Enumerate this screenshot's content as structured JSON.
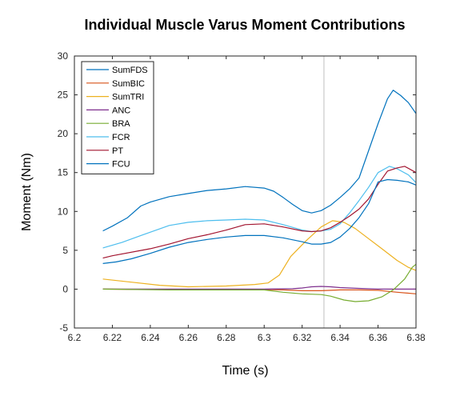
{
  "chart_data": {
    "type": "line",
    "title": "Individual Muscle Varus Moment Contributions",
    "xlabel": "Time (s)",
    "ylabel": "Moment (Nm)",
    "xlim": [
      6.2,
      6.38
    ],
    "ylim": [
      -5,
      30
    ],
    "xticks": [
      "6.2",
      "6.22",
      "6.24",
      "6.26",
      "6.28",
      "6.3",
      "6.32",
      "6.34",
      "6.36",
      "6.38"
    ],
    "yticks": [
      "-5",
      "0",
      "5",
      "10",
      "15",
      "20",
      "25",
      "30"
    ],
    "grid": false,
    "legend_position": "top-left",
    "vertical_marker_x": 6.3315,
    "vertical_marker_color": "#c0c0c0",
    "series": [
      {
        "name": "SumFDS",
        "color": "#0072BD",
        "points": [
          [
            6.215,
            7.5
          ],
          [
            6.22,
            8.1
          ],
          [
            6.228,
            9.2
          ],
          [
            6.235,
            10.7
          ],
          [
            6.24,
            11.2
          ],
          [
            6.25,
            11.9
          ],
          [
            6.26,
            12.3
          ],
          [
            6.27,
            12.7
          ],
          [
            6.28,
            12.9
          ],
          [
            6.29,
            13.2
          ],
          [
            6.3,
            13.0
          ],
          [
            6.305,
            12.6
          ],
          [
            6.31,
            11.8
          ],
          [
            6.315,
            10.9
          ],
          [
            6.32,
            10.1
          ],
          [
            6.325,
            9.8
          ],
          [
            6.33,
            10.1
          ],
          [
            6.335,
            10.8
          ],
          [
            6.34,
            11.8
          ],
          [
            6.345,
            12.9
          ],
          [
            6.35,
            14.3
          ],
          [
            6.355,
            17.8
          ],
          [
            6.36,
            21.3
          ],
          [
            6.365,
            24.5
          ],
          [
            6.368,
            25.6
          ],
          [
            6.372,
            24.9
          ],
          [
            6.376,
            24.0
          ],
          [
            6.38,
            22.6
          ]
        ]
      },
      {
        "name": "SumBIC",
        "color": "#D95319",
        "points": [
          [
            6.215,
            0.0
          ],
          [
            6.24,
            -0.05
          ],
          [
            6.27,
            -0.1
          ],
          [
            6.3,
            -0.05
          ],
          [
            6.31,
            -0.1
          ],
          [
            6.32,
            -0.2
          ],
          [
            6.33,
            -0.2
          ],
          [
            6.34,
            -0.1
          ],
          [
            6.35,
            -0.1
          ],
          [
            6.36,
            -0.15
          ],
          [
            6.37,
            -0.4
          ],
          [
            6.38,
            -0.6
          ]
        ]
      },
      {
        "name": "SumTRI",
        "color": "#EDB120",
        "points": [
          [
            6.215,
            1.3
          ],
          [
            6.23,
            0.9
          ],
          [
            6.245,
            0.5
          ],
          [
            6.26,
            0.3
          ],
          [
            6.28,
            0.4
          ],
          [
            6.295,
            0.6
          ],
          [
            6.302,
            0.8
          ],
          [
            6.308,
            1.8
          ],
          [
            6.314,
            4.2
          ],
          [
            6.322,
            6.2
          ],
          [
            6.33,
            8.0
          ],
          [
            6.336,
            8.8
          ],
          [
            6.342,
            8.6
          ],
          [
            6.348,
            7.8
          ],
          [
            6.355,
            6.5
          ],
          [
            6.362,
            5.2
          ],
          [
            6.37,
            3.7
          ],
          [
            6.376,
            2.8
          ],
          [
            6.38,
            2.4
          ]
        ]
      },
      {
        "name": "ANC",
        "color": "#7E2F8E",
        "points": [
          [
            6.215,
            0.0
          ],
          [
            6.25,
            0.0
          ],
          [
            6.28,
            0.0
          ],
          [
            6.3,
            0.0
          ],
          [
            6.315,
            0.05
          ],
          [
            6.32,
            0.15
          ],
          [
            6.325,
            0.3
          ],
          [
            6.33,
            0.35
          ],
          [
            6.335,
            0.3
          ],
          [
            6.34,
            0.2
          ],
          [
            6.35,
            0.1
          ],
          [
            6.36,
            0.0
          ],
          [
            6.38,
            0.0
          ]
        ]
      },
      {
        "name": "BRA",
        "color": "#77AC30",
        "points": [
          [
            6.215,
            0.0
          ],
          [
            6.25,
            -0.1
          ],
          [
            6.28,
            -0.1
          ],
          [
            6.3,
            -0.1
          ],
          [
            6.31,
            -0.4
          ],
          [
            6.32,
            -0.6
          ],
          [
            6.33,
            -0.7
          ],
          [
            6.335,
            -0.9
          ],
          [
            6.342,
            -1.4
          ],
          [
            6.348,
            -1.6
          ],
          [
            6.355,
            -1.5
          ],
          [
            6.362,
            -1.0
          ],
          [
            6.368,
            -0.1
          ],
          [
            6.374,
            1.3
          ],
          [
            6.378,
            2.8
          ],
          [
            6.38,
            3.2
          ]
        ]
      },
      {
        "name": "FCR",
        "color": "#4DBEEE",
        "points": [
          [
            6.215,
            5.3
          ],
          [
            6.225,
            6.0
          ],
          [
            6.235,
            6.9
          ],
          [
            6.25,
            8.2
          ],
          [
            6.26,
            8.6
          ],
          [
            6.27,
            8.8
          ],
          [
            6.28,
            8.9
          ],
          [
            6.29,
            9.0
          ],
          [
            6.3,
            8.9
          ],
          [
            6.31,
            8.3
          ],
          [
            6.32,
            7.6
          ],
          [
            6.325,
            7.4
          ],
          [
            6.33,
            7.5
          ],
          [
            6.335,
            7.7
          ],
          [
            6.34,
            8.4
          ],
          [
            6.345,
            9.8
          ],
          [
            6.35,
            11.4
          ],
          [
            6.355,
            13.1
          ],
          [
            6.36,
            15.0
          ],
          [
            6.366,
            15.8
          ],
          [
            6.37,
            15.5
          ],
          [
            6.376,
            14.7
          ],
          [
            6.38,
            13.7
          ]
        ]
      },
      {
        "name": "PT",
        "color": "#A2142F",
        "points": [
          [
            6.215,
            4.0
          ],
          [
            6.22,
            4.3
          ],
          [
            6.24,
            5.2
          ],
          [
            6.25,
            5.8
          ],
          [
            6.26,
            6.5
          ],
          [
            6.27,
            7.0
          ],
          [
            6.28,
            7.6
          ],
          [
            6.29,
            8.3
          ],
          [
            6.3,
            8.4
          ],
          [
            6.31,
            8.0
          ],
          [
            6.32,
            7.5
          ],
          [
            6.325,
            7.4
          ],
          [
            6.33,
            7.5
          ],
          [
            6.335,
            7.9
          ],
          [
            6.34,
            8.6
          ],
          [
            6.345,
            9.4
          ],
          [
            6.35,
            10.3
          ],
          [
            6.355,
            11.6
          ],
          [
            6.36,
            13.5
          ],
          [
            6.365,
            15.2
          ],
          [
            6.37,
            15.6
          ],
          [
            6.374,
            15.8
          ],
          [
            6.38,
            15.0
          ]
        ]
      },
      {
        "name": "FCU",
        "color": "#0072BD",
        "points": [
          [
            6.215,
            3.3
          ],
          [
            6.222,
            3.5
          ],
          [
            6.23,
            3.9
          ],
          [
            6.24,
            4.6
          ],
          [
            6.25,
            5.4
          ],
          [
            6.26,
            6.0
          ],
          [
            6.27,
            6.4
          ],
          [
            6.28,
            6.7
          ],
          [
            6.29,
            6.9
          ],
          [
            6.3,
            6.9
          ],
          [
            6.31,
            6.6
          ],
          [
            6.32,
            6.1
          ],
          [
            6.325,
            5.8
          ],
          [
            6.33,
            5.8
          ],
          [
            6.335,
            6.0
          ],
          [
            6.34,
            6.7
          ],
          [
            6.345,
            7.8
          ],
          [
            6.35,
            9.2
          ],
          [
            6.355,
            11.0
          ],
          [
            6.36,
            13.8
          ],
          [
            6.365,
            14.1
          ],
          [
            6.37,
            14.0
          ],
          [
            6.376,
            13.8
          ],
          [
            6.38,
            13.4
          ]
        ]
      }
    ]
  }
}
